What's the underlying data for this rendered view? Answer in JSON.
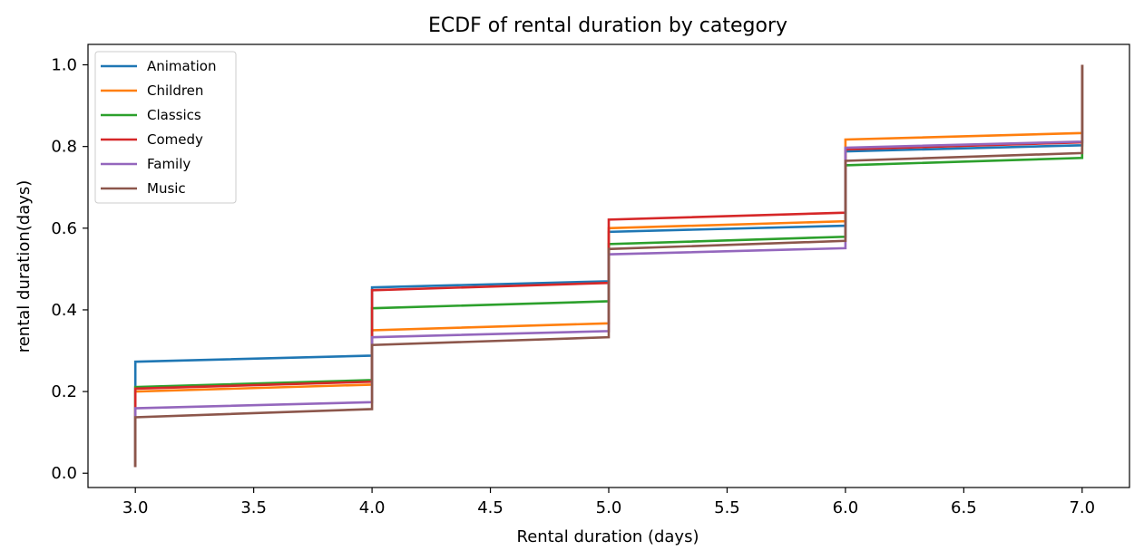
{
  "chart_data": {
    "type": "line",
    "step": true,
    "title": "ECDF of rental duration by category",
    "xlabel": "Rental duration (days)",
    "ylabel": "rental duration(days)",
    "xlim": [
      2.8,
      7.2
    ],
    "ylim": [
      -0.035,
      1.05
    ],
    "xticks": [
      "3.0",
      "3.5",
      "4.0",
      "4.5",
      "5.0",
      "5.5",
      "6.0",
      "6.5",
      "7.0"
    ],
    "yticks": [
      "0.0",
      "0.2",
      "0.4",
      "0.6",
      "0.8",
      "1.0"
    ],
    "legend_position": "top-left",
    "grid": false,
    "series": [
      {
        "name": "Animation",
        "color": "#1f77b4",
        "segments": [
          [
            3.0,
            0.015,
            0.273,
            0.288
          ],
          [
            4.0,
            0.288,
            0.455,
            0.47
          ],
          [
            5.0,
            0.47,
            0.591,
            0.606
          ],
          [
            6.0,
            0.606,
            0.788,
            0.803
          ],
          [
            7.0,
            0.803,
            1.0,
            1.0
          ]
        ]
      },
      {
        "name": "Children",
        "color": "#ff7f0e",
        "segments": [
          [
            3.0,
            0.015,
            0.2,
            0.217
          ],
          [
            4.0,
            0.217,
            0.35,
            0.367
          ],
          [
            5.0,
            0.367,
            0.6,
            0.617
          ],
          [
            6.0,
            0.617,
            0.817,
            0.833
          ],
          [
            7.0,
            0.833,
            1.0,
            1.0
          ]
        ]
      },
      {
        "name": "Classics",
        "color": "#2ca02c",
        "segments": [
          [
            3.0,
            0.015,
            0.211,
            0.228
          ],
          [
            4.0,
            0.228,
            0.404,
            0.421
          ],
          [
            5.0,
            0.421,
            0.561,
            0.579
          ],
          [
            6.0,
            0.579,
            0.754,
            0.772
          ],
          [
            7.0,
            0.772,
            1.0,
            1.0
          ]
        ]
      },
      {
        "name": "Comedy",
        "color": "#d62728",
        "segments": [
          [
            3.0,
            0.015,
            0.207,
            0.224
          ],
          [
            4.0,
            0.224,
            0.448,
            0.466
          ],
          [
            5.0,
            0.466,
            0.621,
            0.638
          ],
          [
            6.0,
            0.638,
            0.793,
            0.81
          ],
          [
            7.0,
            0.81,
            1.0,
            1.0
          ]
        ]
      },
      {
        "name": "Family",
        "color": "#9467bd",
        "segments": [
          [
            3.0,
            0.015,
            0.159,
            0.174
          ],
          [
            4.0,
            0.174,
            0.333,
            0.348
          ],
          [
            5.0,
            0.348,
            0.536,
            0.551
          ],
          [
            6.0,
            0.551,
            0.797,
            0.812
          ],
          [
            7.0,
            0.812,
            1.0,
            1.0
          ]
        ]
      },
      {
        "name": "Music",
        "color": "#8c564b",
        "segments": [
          [
            3.0,
            0.015,
            0.137,
            0.157
          ],
          [
            4.0,
            0.157,
            0.314,
            0.333
          ],
          [
            5.0,
            0.333,
            0.549,
            0.569
          ],
          [
            6.0,
            0.569,
            0.765,
            0.784
          ],
          [
            7.0,
            0.784,
            1.0,
            1.0
          ]
        ]
      }
    ]
  }
}
